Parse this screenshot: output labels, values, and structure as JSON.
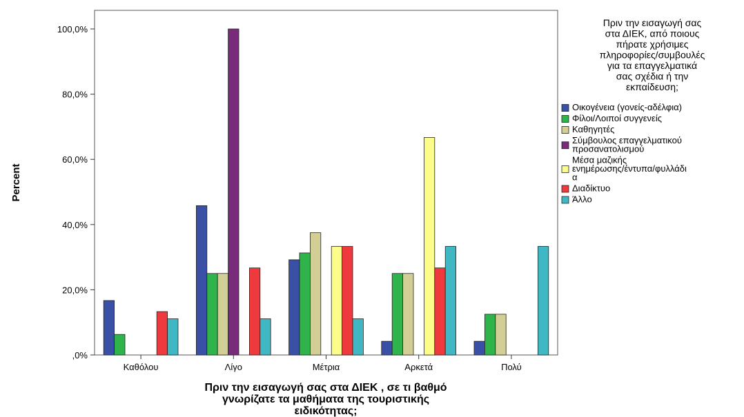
{
  "chart_data": {
    "type": "bar",
    "ylabel": "Percent",
    "xlabel_lines": [
      "Πριν την εισαγωγή σας στα ΔΙΕΚ , σε τι βαθμό",
      "γνωρίζατε τα μαθήματα της τουριστικής",
      "ειδικότητας;"
    ],
    "ylim": [
      0,
      100
    ],
    "yticks": [
      0,
      20,
      40,
      60,
      80,
      100
    ],
    "ytick_labels": [
      ",0%",
      "20,0%",
      "40,0%",
      "60,0%",
      "80,0%",
      "100,0%"
    ],
    "categories": [
      "Καθόλου",
      "Λίγο",
      "Μέτρια",
      "Αρκετά",
      "Πολύ"
    ],
    "legend_title_lines": [
      "Πριν την εισαγωγή σας",
      "στα ΔΙΕΚ, από ποιους",
      "πήρατε χρήσιμες",
      "πληροφορίες/συμβουλές",
      "για τα επαγγελματικά",
      "σας σχέδια ή την",
      "εκπαίδευση;"
    ],
    "legend_position": "right",
    "grid": false,
    "series": [
      {
        "name": "Οικογένεια (γονείς-αδέλφια)",
        "label_lines": [
          "Οικογένεια (γονείς-αδέλφια)"
        ],
        "color": "#3a50a6",
        "values": [
          16.7,
          45.8,
          29.2,
          4.2,
          4.2
        ]
      },
      {
        "name": "Φίλοι/Λοιποί συγγενείς",
        "label_lines": [
          "Φίλοι/Λοιποί συγγενείς"
        ],
        "color": "#2fb34b",
        "values": [
          6.3,
          25.0,
          31.3,
          25.0,
          12.5
        ]
      },
      {
        "name": "Καθηγητές",
        "label_lines": [
          "Καθηγητές"
        ],
        "color": "#d3cd96",
        "values": [
          0,
          25.0,
          37.5,
          25.0,
          12.5
        ]
      },
      {
        "name": "Σύμβουλος επαγγελματικού προσανατολισμού",
        "label_lines": [
          "Σύμβουλος επαγγελματικού",
          "προσανατολισμού"
        ],
        "color": "#7a2a7a",
        "values": [
          0,
          100.0,
          0,
          0,
          0
        ]
      },
      {
        "name": "Μέσα μαζικής ενημέρωσης/έντυπα/φυλλάδια",
        "label_lines": [
          "Μέσα μαζικής",
          "ενημέρωσης/έντυπα/φυλλάδι",
          "α"
        ],
        "color": "#fcfc8a",
        "values": [
          0,
          0,
          33.3,
          66.7,
          0
        ]
      },
      {
        "name": "Διαδίκτυο",
        "label_lines": [
          "Διαδίκτυο"
        ],
        "color": "#ee3a3c",
        "values": [
          13.3,
          26.7,
          33.3,
          26.7,
          0
        ]
      },
      {
        "name": "Άλλο",
        "label_lines": [
          "Άλλο"
        ],
        "color": "#3fb8c4",
        "values": [
          11.1,
          11.1,
          11.1,
          33.3,
          33.3
        ]
      }
    ]
  }
}
